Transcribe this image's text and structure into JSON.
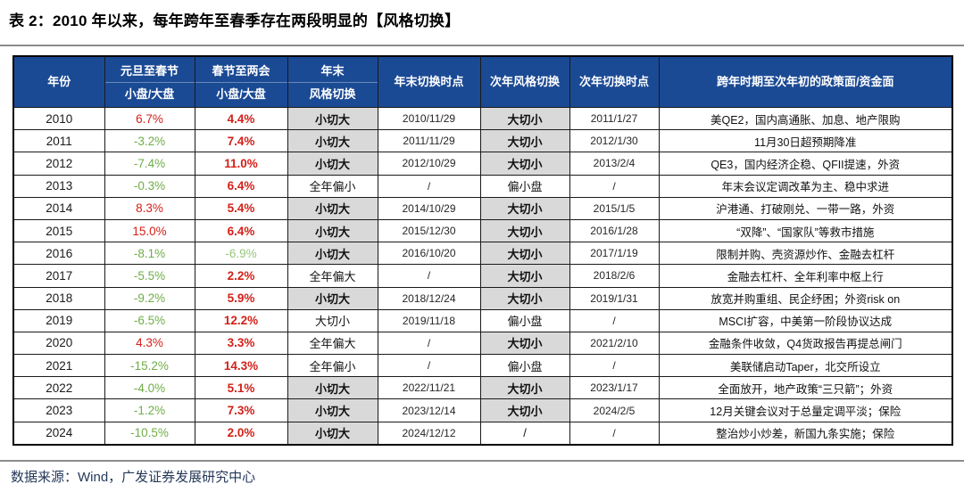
{
  "title": "表 2：2010 年以来，每年跨年至春季存在两段明显的【风格切换】",
  "source": "数据来源：Wind，广发证券发展研究中心",
  "colors": {
    "header_bg": "#1B4A94",
    "header_text": "#FFFFFF",
    "highlight_bg": "#D9D9D9",
    "red": "#D32018",
    "green": "#6FAD47",
    "green_light": "#97C77B",
    "border": "#1A1A1A",
    "source_text": "#253858"
  },
  "table": {
    "headers": {
      "year": "年份",
      "jan_top": "元旦至春节",
      "jan_bottom": "小盘/大盘",
      "feb_top": "春节至两会",
      "feb_bottom": "小盘/大盘",
      "ye_top": "年末",
      "ye_bottom": "风格切换",
      "ye_time": "年末切换时点",
      "ny_switch": "次年风格切换",
      "ny_time": "次年切换时点",
      "policy": "跨年时期至次年初的政策面/资金面"
    },
    "rows": [
      {
        "year": "2010",
        "jan": "6.7%",
        "jan_color": "red",
        "feb": "4.4%",
        "feb_color": "red",
        "feb_bold": true,
        "ye_switch": "小切大",
        "ye_hl": true,
        "ye_time": "2010/11/29",
        "ny_switch": "大切小",
        "ny_hl": true,
        "ny_time": "2011/1/27",
        "note": "美QE2，国内高通胀、加息、地产限购"
      },
      {
        "year": "2011",
        "jan": "-3.2%",
        "jan_color": "green",
        "feb": "7.4%",
        "feb_color": "red",
        "feb_bold": true,
        "ye_switch": "小切大",
        "ye_hl": true,
        "ye_time": "2011/11/29",
        "ny_switch": "大切小",
        "ny_hl": true,
        "ny_time": "2012/1/30",
        "note": "11月30日超预期降准"
      },
      {
        "year": "2012",
        "jan": "-7.4%",
        "jan_color": "green",
        "feb": "11.0%",
        "feb_color": "red",
        "feb_bold": true,
        "ye_switch": "小切大",
        "ye_hl": true,
        "ye_time": "2012/10/29",
        "ny_switch": "大切小",
        "ny_hl": true,
        "ny_time": "2013/2/4",
        "note": "QE3，国内经济企稳、QFII提速，外资"
      },
      {
        "year": "2013",
        "jan": "-0.3%",
        "jan_color": "green",
        "feb": "6.4%",
        "feb_color": "red",
        "feb_bold": true,
        "ye_switch": "全年偏小",
        "ye_hl": false,
        "ye_time": "/",
        "ny_switch": "偏小盘",
        "ny_hl": false,
        "ny_time": "/",
        "note": "年末会议定调改革为主、稳中求进"
      },
      {
        "year": "2014",
        "jan": "8.3%",
        "jan_color": "red",
        "feb": "5.4%",
        "feb_color": "red",
        "feb_bold": true,
        "ye_switch": "小切大",
        "ye_hl": true,
        "ye_time": "2014/10/29",
        "ny_switch": "大切小",
        "ny_hl": true,
        "ny_time": "2015/1/5",
        "note": "沪港通、打破刚兑、一带一路，外资"
      },
      {
        "year": "2015",
        "jan": "15.0%",
        "jan_color": "red",
        "feb": "6.4%",
        "feb_color": "red",
        "feb_bold": true,
        "ye_switch": "小切大",
        "ye_hl": true,
        "ye_time": "2015/12/30",
        "ny_switch": "大切小",
        "ny_hl": true,
        "ny_time": "2016/1/28",
        "note": "“双降”、“国家队”等救市措施"
      },
      {
        "year": "2016",
        "jan": "-8.1%",
        "jan_color": "green",
        "feb": "-6.9%",
        "feb_color": "greenlight",
        "feb_bold": false,
        "ye_switch": "小切大",
        "ye_hl": true,
        "ye_time": "2016/10/20",
        "ny_switch": "大切小",
        "ny_hl": true,
        "ny_time": "2017/1/19",
        "note": "限制并购、壳资源炒作、金融去杠杆"
      },
      {
        "year": "2017",
        "jan": "-5.5%",
        "jan_color": "green",
        "feb": "2.2%",
        "feb_color": "red",
        "feb_bold": true,
        "ye_switch": "全年偏大",
        "ye_hl": false,
        "ye_time": "/",
        "ny_switch": "大切小",
        "ny_hl": true,
        "ny_time": "2018/2/6",
        "note": "金融去杠杆、全年利率中枢上行"
      },
      {
        "year": "2018",
        "jan": "-9.2%",
        "jan_color": "green",
        "feb": "5.9%",
        "feb_color": "red",
        "feb_bold": true,
        "ye_switch": "小切大",
        "ye_hl": true,
        "ye_time": "2018/12/24",
        "ny_switch": "大切小",
        "ny_hl": true,
        "ny_time": "2019/1/31",
        "note": "放宽并购重组、民企纾困；外资risk on"
      },
      {
        "year": "2019",
        "jan": "-6.5%",
        "jan_color": "green",
        "feb": "12.2%",
        "feb_color": "red",
        "feb_bold": true,
        "ye_switch": "大切小",
        "ye_hl": false,
        "ye_time": "2019/11/18",
        "ny_switch": "偏小盘",
        "ny_hl": false,
        "ny_time": "/",
        "note": "MSCI扩容，中美第一阶段协议达成"
      },
      {
        "year": "2020",
        "jan": "4.3%",
        "jan_color": "red",
        "feb": "3.3%",
        "feb_color": "red",
        "feb_bold": true,
        "ye_switch": "全年偏大",
        "ye_hl": false,
        "ye_time": "/",
        "ny_switch": "大切小",
        "ny_hl": true,
        "ny_time": "2021/2/10",
        "note": "金融条件收敛，Q4货政报告再提总闸门"
      },
      {
        "year": "2021",
        "jan": "-15.2%",
        "jan_color": "green",
        "feb": "14.3%",
        "feb_color": "red",
        "feb_bold": true,
        "ye_switch": "全年偏小",
        "ye_hl": false,
        "ye_time": "/",
        "ny_switch": "偏小盘",
        "ny_hl": false,
        "ny_time": "/",
        "note": "美联储启动Taper，北交所设立"
      },
      {
        "year": "2022",
        "jan": "-4.0%",
        "jan_color": "green",
        "feb": "5.1%",
        "feb_color": "red",
        "feb_bold": true,
        "ye_switch": "小切大",
        "ye_hl": true,
        "ye_time": "2022/11/21",
        "ny_switch": "大切小",
        "ny_hl": true,
        "ny_time": "2023/1/17",
        "note": "全面放开，地产政策“三只箭”；外资"
      },
      {
        "year": "2023",
        "jan": "-1.2%",
        "jan_color": "green",
        "feb": "7.3%",
        "feb_color": "red",
        "feb_bold": true,
        "ye_switch": "小切大",
        "ye_hl": true,
        "ye_time": "2023/12/14",
        "ny_switch": "大切小",
        "ny_hl": true,
        "ny_time": "2024/2/5",
        "note": "12月关键会议对于总量定调平淡；保险"
      },
      {
        "year": "2024",
        "jan": "-10.5%",
        "jan_color": "green",
        "feb": "2.0%",
        "feb_color": "red",
        "feb_bold": true,
        "ye_switch": "小切大",
        "ye_hl": true,
        "ye_time": "2024/12/12",
        "ny_switch": "/",
        "ny_hl": false,
        "ny_time": "/",
        "note": "整治炒小炒差，新国九条实施；保险"
      }
    ]
  }
}
